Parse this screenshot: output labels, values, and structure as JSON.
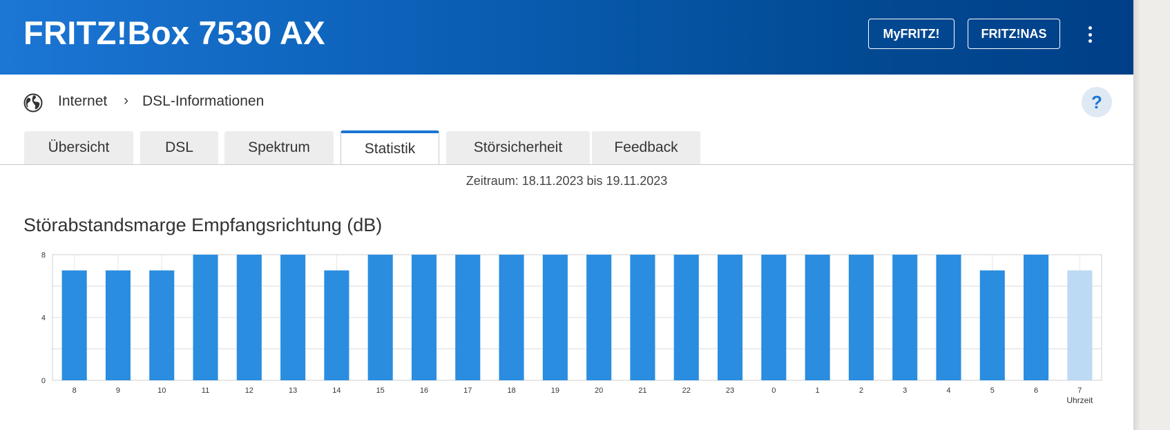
{
  "header": {
    "title": "FRITZ!Box 7530 AX",
    "myfritz_label": "MyFRITZ!",
    "nas_label": "FRITZ!NAS",
    "menu_icon": "kebab-menu-icon"
  },
  "breadcrumb": {
    "icon": "globe-icon",
    "items": [
      "Internet",
      "DSL-Informationen"
    ],
    "separator": "›"
  },
  "help_label": "?",
  "tabs": [
    {
      "label": "Übersicht",
      "active": false
    },
    {
      "label": "DSL",
      "active": false
    },
    {
      "label": "Spektrum",
      "active": false
    },
    {
      "label": "Statistik",
      "active": true
    },
    {
      "label": "Störsicherheit",
      "active": false
    },
    {
      "label": "Feedback",
      "active": false
    }
  ],
  "period": "Zeitraum: 18.11.2023 bis 19.11.2023",
  "colors": {
    "accent": "#1c76d4",
    "bar": "#2a8de0",
    "bar_current": "#bcdaf3"
  },
  "chart_data": {
    "type": "bar",
    "title": "Störabstandsmarge Empfangsrichtung (dB)",
    "xlabel": "Uhrzeit",
    "ylabel": "",
    "ylim": [
      0,
      8
    ],
    "yticks": [
      0,
      4,
      8
    ],
    "categories": [
      "8",
      "9",
      "10",
      "11",
      "12",
      "13",
      "14",
      "15",
      "16",
      "17",
      "18",
      "19",
      "20",
      "21",
      "22",
      "23",
      "0",
      "1",
      "2",
      "3",
      "4",
      "5",
      "6",
      "7"
    ],
    "values": [
      7,
      7,
      7,
      8,
      8,
      8,
      7,
      8,
      8,
      8,
      8,
      8,
      8,
      8,
      8,
      8,
      8,
      8,
      8,
      8,
      8,
      7,
      8,
      7
    ],
    "highlight_last": true,
    "grid": true
  }
}
